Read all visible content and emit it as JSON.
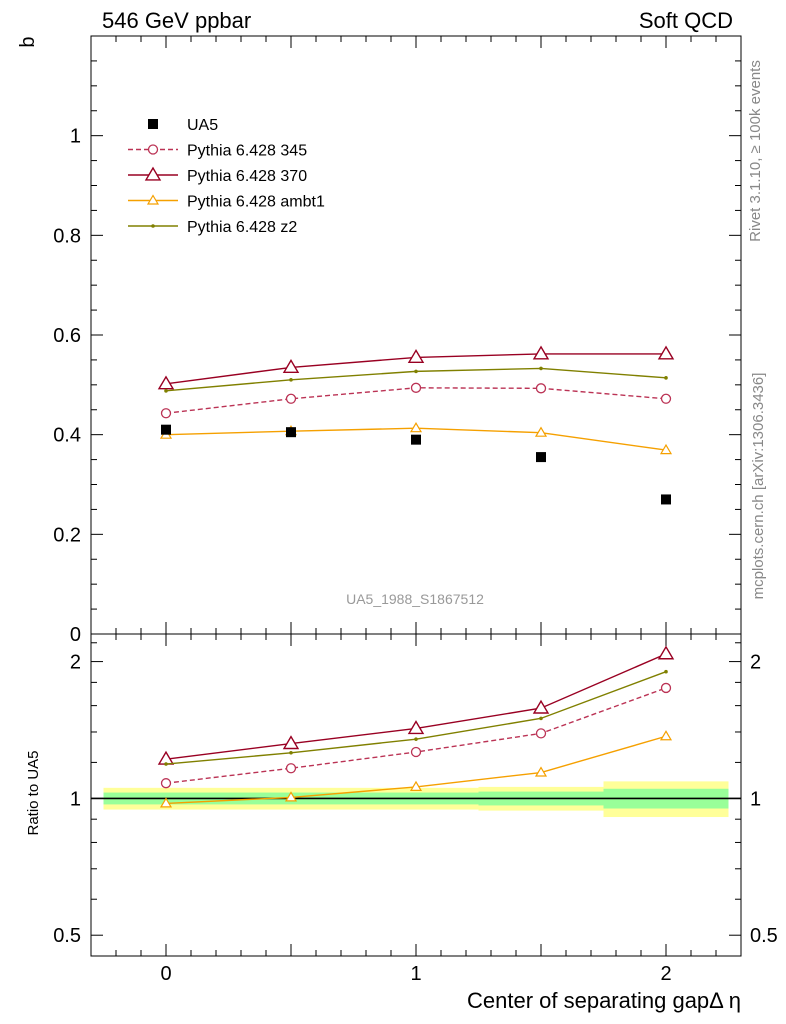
{
  "header": {
    "left_label": "546 GeV ppbar",
    "right_label": "Soft QCD"
  },
  "side_text": {
    "rivet": "Rivet 3.1.10, ≥ 100k events",
    "mcplots": "mcplots.cern.ch [arXiv:1306.3436]"
  },
  "watermark": "UA5_1988_S1867512",
  "colors": {
    "data": "#000000",
    "p345": "#bb3355",
    "p370": "#990022",
    "ambt1": "#f5a000",
    "z2": "#808000",
    "band_inner": "#99ff99",
    "band_outer": "#ffff99"
  },
  "chart_data": [
    {
      "type": "scatter",
      "panel": "main",
      "ylabel": "b",
      "ylim": [
        0,
        1.2
      ],
      "xlim": [
        -0.3,
        2.3
      ],
      "y_ticks": [
        0,
        0.2,
        0.4,
        0.6,
        0.8,
        1
      ],
      "y_tick_labels": [
        "0",
        "0.2",
        "0.4",
        "0.6",
        "0.8",
        "1"
      ],
      "legend_placement": "top-left",
      "series": [
        {
          "name": "UA5",
          "key": "data",
          "style": "square",
          "x": [
            0,
            0.5,
            1,
            1.5,
            2
          ],
          "y": [
            0.41,
            0.405,
            0.39,
            0.355,
            0.27
          ]
        },
        {
          "name": "Pythia 6.428 345",
          "key": "p345",
          "style": "circle-dashed",
          "x": [
            0,
            0.5,
            1,
            1.5,
            2
          ],
          "y": [
            0.443,
            0.472,
            0.494,
            0.493,
            0.472
          ]
        },
        {
          "name": "Pythia 6.428 370",
          "key": "p370",
          "style": "triangle",
          "x": [
            0,
            0.5,
            1,
            1.5,
            2
          ],
          "y": [
            0.502,
            0.535,
            0.555,
            0.562,
            0.562
          ]
        },
        {
          "name": "Pythia 6.428 ambt1",
          "key": "ambt1",
          "style": "triangle-small",
          "x": [
            0,
            0.5,
            1,
            1.5,
            2
          ],
          "y": [
            0.4,
            0.407,
            0.413,
            0.404,
            0.369
          ]
        },
        {
          "name": "Pythia 6.428 z2",
          "key": "z2",
          "style": "dot",
          "x": [
            0,
            0.5,
            1,
            1.5,
            2
          ],
          "y": [
            0.488,
            0.51,
            0.527,
            0.533,
            0.514
          ]
        }
      ]
    },
    {
      "type": "line",
      "panel": "ratio",
      "ylabel": "Ratio to UA5",
      "xlabel": "Center of separating gapΔ η",
      "ylim": [
        0.45,
        2.3
      ],
      "log_scale": true,
      "x_ticks": [
        0,
        1,
        2
      ],
      "x_tick_labels": [
        "0",
        "1",
        "2"
      ],
      "y_ticks": [
        0.5,
        1,
        2
      ],
      "y_tick_labels": [
        "0.5",
        "1",
        "2"
      ],
      "bands": [
        {
          "x_from": -0.25,
          "x_to": 0.25,
          "inner": [
            0.97,
            1.03
          ],
          "outer": [
            0.945,
            1.055
          ]
        },
        {
          "x_from": 0.25,
          "x_to": 0.75,
          "inner": [
            0.97,
            1.03
          ],
          "outer": [
            0.945,
            1.055
          ]
        },
        {
          "x_from": 0.75,
          "x_to": 1.25,
          "inner": [
            0.97,
            1.03
          ],
          "outer": [
            0.945,
            1.055
          ]
        },
        {
          "x_from": 1.25,
          "x_to": 1.75,
          "inner": [
            0.965,
            1.035
          ],
          "outer": [
            0.94,
            1.06
          ]
        },
        {
          "x_from": 1.75,
          "x_to": 2.25,
          "inner": [
            0.95,
            1.05
          ],
          "outer": [
            0.91,
            1.09
          ]
        }
      ],
      "series": [
        {
          "key": "p345",
          "style": "circle-dashed",
          "x": [
            0,
            0.5,
            1,
            1.5,
            2
          ],
          "y": [
            1.08,
            1.165,
            1.265,
            1.39,
            1.75
          ]
        },
        {
          "key": "p370",
          "style": "triangle",
          "x": [
            0,
            0.5,
            1,
            1.5,
            2
          ],
          "y": [
            1.22,
            1.32,
            1.425,
            1.58,
            2.08
          ]
        },
        {
          "key": "ambt1",
          "style": "triangle-small",
          "x": [
            0,
            0.5,
            1,
            1.5,
            2
          ],
          "y": [
            0.975,
            1.005,
            1.06,
            1.14,
            1.37
          ]
        },
        {
          "key": "z2",
          "style": "dot",
          "x": [
            0,
            0.5,
            1,
            1.5,
            2
          ],
          "y": [
            1.19,
            1.26,
            1.35,
            1.5,
            1.9
          ]
        }
      ]
    }
  ]
}
